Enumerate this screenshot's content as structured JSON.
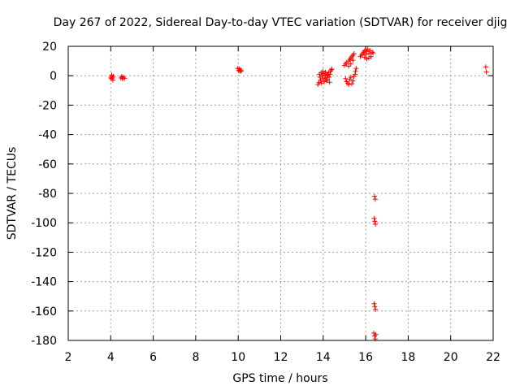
{
  "chart_data": {
    "type": "scatter",
    "title": "Day 267 of 2022, Sidereal Day-to-day VTEC variation (SDTVAR) for receiver djig",
    "xlabel": "GPS time / hours",
    "ylabel": "SDTVAR / TECUs",
    "xlim": [
      2,
      22
    ],
    "ylim": [
      -180,
      20
    ],
    "xticks": [
      2,
      4,
      6,
      8,
      10,
      12,
      14,
      16,
      18,
      20,
      22
    ],
    "yticks": [
      20,
      0,
      -20,
      -40,
      -60,
      -80,
      -100,
      -120,
      -140,
      -160,
      -180
    ],
    "xtick_labels": [
      "2",
      "4",
      "6",
      "8",
      "10",
      "12",
      "14",
      "16",
      "18",
      "20",
      "22"
    ],
    "ytick_labels": [
      "20",
      "0",
      "-20",
      "-40",
      "-60",
      "-80",
      "-100",
      "-120",
      "-140",
      "-160",
      "-180"
    ],
    "grid": true,
    "marker": "plus",
    "color": "#ff0000",
    "series": [
      {
        "name": "SDTVAR",
        "points": [
          [
            4.0,
            -1.0
          ],
          [
            4.02,
            -2.0
          ],
          [
            4.05,
            0.5
          ],
          [
            4.08,
            -1.5
          ],
          [
            4.1,
            -3.0
          ],
          [
            4.12,
            -0.5
          ],
          [
            4.48,
            -1.5
          ],
          [
            4.52,
            -0.5
          ],
          [
            4.55,
            -2.0
          ],
          [
            4.6,
            -1.0
          ],
          [
            4.65,
            -1.8
          ],
          [
            9.98,
            5.0
          ],
          [
            10.02,
            3.5
          ],
          [
            10.05,
            4.5
          ],
          [
            10.08,
            3.0
          ],
          [
            10.12,
            4.0
          ],
          [
            10.15,
            3.2
          ],
          [
            13.82,
            1.0
          ],
          [
            13.85,
            -1.0
          ],
          [
            13.88,
            -3.0
          ],
          [
            13.9,
            2.0
          ],
          [
            13.92,
            -5.0
          ],
          [
            13.95,
            0.0
          ],
          [
            13.98,
            3.0
          ],
          [
            14.0,
            -2.0
          ],
          [
            14.02,
            1.5
          ],
          [
            14.05,
            -4.0
          ],
          [
            14.08,
            0.5
          ],
          [
            14.1,
            2.5
          ],
          [
            14.12,
            -1.5
          ],
          [
            14.15,
            -3.5
          ],
          [
            14.18,
            1.0
          ],
          [
            14.2,
            -2.5
          ],
          [
            14.22,
            0.0
          ],
          [
            14.25,
            2.0
          ],
          [
            14.28,
            -1.0
          ],
          [
            14.3,
            -4.5
          ],
          [
            14.32,
            1.0
          ],
          [
            14.35,
            3.0
          ],
          [
            14.38,
            4.0
          ],
          [
            14.4,
            4.5
          ],
          [
            13.75,
            -6.0
          ],
          [
            13.8,
            -4.5
          ],
          [
            15.05,
            -2.0
          ],
          [
            15.1,
            -4.0
          ],
          [
            15.15,
            -5.0
          ],
          [
            15.2,
            -6.0
          ],
          [
            15.25,
            -2.5
          ],
          [
            15.3,
            -1.0
          ],
          [
            15.35,
            -5.5
          ],
          [
            15.4,
            -3.5
          ],
          [
            15.45,
            -0.5
          ],
          [
            15.5,
            1.0
          ],
          [
            15.52,
            3.0
          ],
          [
            15.55,
            5.0
          ],
          [
            15.0,
            7.0
          ],
          [
            15.05,
            8.0
          ],
          [
            15.1,
            9.0
          ],
          [
            15.2,
            10.0
          ],
          [
            15.25,
            11.0
          ],
          [
            15.3,
            12.0
          ],
          [
            15.35,
            13.0
          ],
          [
            15.4,
            14.0
          ],
          [
            15.45,
            15.0
          ],
          [
            15.2,
            6.5
          ],
          [
            15.3,
            8.0
          ],
          [
            15.4,
            10.5
          ],
          [
            15.75,
            13.0
          ],
          [
            15.8,
            14.0
          ],
          [
            15.85,
            15.0
          ],
          [
            15.9,
            16.0
          ],
          [
            15.95,
            17.0
          ],
          [
            16.0,
            14.5
          ],
          [
            16.05,
            16.5
          ],
          [
            16.1,
            18.0
          ],
          [
            16.15,
            15.0
          ],
          [
            16.2,
            17.0
          ],
          [
            16.25,
            13.0
          ],
          [
            16.3,
            16.0
          ],
          [
            16.35,
            15.5
          ],
          [
            15.95,
            12.5
          ],
          [
            16.05,
            11.5
          ],
          [
            16.15,
            12.0
          ],
          [
            16.42,
            -82.0
          ],
          [
            16.45,
            -84.0
          ],
          [
            16.4,
            -97.0
          ],
          [
            16.43,
            -99.0
          ],
          [
            16.46,
            -101.0
          ],
          [
            16.4,
            -155.0
          ],
          [
            16.43,
            -157.0
          ],
          [
            16.46,
            -159.0
          ],
          [
            16.38,
            -175.0
          ],
          [
            16.42,
            -177.0
          ],
          [
            16.45,
            -179.0
          ],
          [
            16.48,
            -176.0
          ],
          [
            21.65,
            6.0
          ],
          [
            21.68,
            2.5
          ]
        ]
      }
    ]
  }
}
